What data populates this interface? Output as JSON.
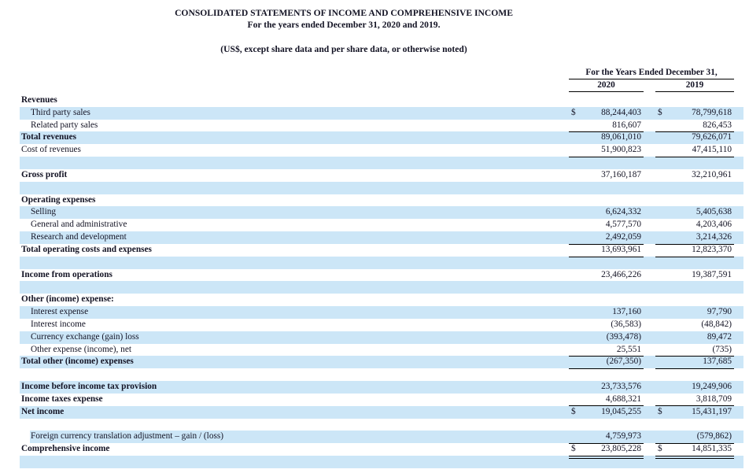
{
  "colors": {
    "stripe": "#cce6f7",
    "text": "#131324",
    "rule": "#000000"
  },
  "header": {
    "title": "CONSOLIDATED STATEMENTS OF INCOME AND COMPREHENSIVE INCOME",
    "period": "For the years ended December 31, 2020 and 2019.",
    "note": "(US$, except share data and per share data, or otherwise noted)"
  },
  "table": {
    "period_header": "For the Years Ended December 31,",
    "columns": [
      "2020",
      "2019"
    ],
    "rows": [
      {
        "label": "Revenues",
        "bold": true,
        "indent": false,
        "dollar1": "",
        "value2020": "",
        "dollar2": "",
        "value2019": "",
        "underline": "none"
      },
      {
        "label": "Third party sales",
        "bold": false,
        "indent": true,
        "dollar1": "$",
        "value2020": "88,244,403",
        "dollar2": "$",
        "value2019": "78,799,618",
        "underline": "none"
      },
      {
        "label": "Related party sales",
        "bold": false,
        "indent": true,
        "dollar1": "",
        "value2020": "816,607",
        "dollar2": "",
        "value2019": "826,453",
        "underline": "single"
      },
      {
        "label": "Total revenues",
        "bold": true,
        "indent": false,
        "dollar1": "",
        "value2020": "89,061,010",
        "dollar2": "",
        "value2019": "79,626,071",
        "underline": "none"
      },
      {
        "label": "Cost of revenues",
        "bold": false,
        "indent": false,
        "dollar1": "",
        "value2020": "51,900,823",
        "dollar2": "",
        "value2019": "47,415,110",
        "underline": "single"
      },
      {
        "label": "",
        "bold": false,
        "indent": false,
        "dollar1": "",
        "value2020": "",
        "dollar2": "",
        "value2019": "",
        "underline": "none"
      },
      {
        "label": "Gross profit",
        "bold": true,
        "indent": false,
        "dollar1": "",
        "value2020": "37,160,187",
        "dollar2": "",
        "value2019": "32,210,961",
        "underline": "none"
      },
      {
        "label": "",
        "bold": false,
        "indent": false,
        "dollar1": "",
        "value2020": "",
        "dollar2": "",
        "value2019": "",
        "underline": "none"
      },
      {
        "label": "Operating expenses",
        "bold": true,
        "indent": false,
        "dollar1": "",
        "value2020": "",
        "dollar2": "",
        "value2019": "",
        "underline": "none"
      },
      {
        "label": "Selling",
        "bold": false,
        "indent": true,
        "dollar1": "",
        "value2020": "6,624,332",
        "dollar2": "",
        "value2019": "5,405,638",
        "underline": "none"
      },
      {
        "label": "General and administrative",
        "bold": false,
        "indent": true,
        "dollar1": "",
        "value2020": "4,577,570",
        "dollar2": "",
        "value2019": "4,203,406",
        "underline": "none"
      },
      {
        "label": "Research and development",
        "bold": false,
        "indent": true,
        "dollar1": "",
        "value2020": "2,492,059",
        "dollar2": "",
        "value2019": "3,214,326",
        "underline": "single"
      },
      {
        "label": "Total operating costs and expenses",
        "bold": true,
        "indent": false,
        "dollar1": "",
        "value2020": "13,693,961",
        "dollar2": "",
        "value2019": "12,823,370",
        "underline": "single"
      },
      {
        "label": "",
        "bold": false,
        "indent": false,
        "dollar1": "",
        "value2020": "",
        "dollar2": "",
        "value2019": "",
        "underline": "none"
      },
      {
        "label": "Income from operations",
        "bold": true,
        "indent": false,
        "dollar1": "",
        "value2020": "23,466,226",
        "dollar2": "",
        "value2019": "19,387,591",
        "underline": "none"
      },
      {
        "label": "",
        "bold": false,
        "indent": false,
        "dollar1": "",
        "value2020": "",
        "dollar2": "",
        "value2019": "",
        "underline": "none"
      },
      {
        "label": "Other (income) expense:",
        "bold": true,
        "indent": false,
        "dollar1": "",
        "value2020": "",
        "dollar2": "",
        "value2019": "",
        "underline": "none"
      },
      {
        "label": "Interest expense",
        "bold": false,
        "indent": true,
        "dollar1": "",
        "value2020": "137,160",
        "dollar2": "",
        "value2019": "97,790",
        "underline": "none"
      },
      {
        "label": "Interest income",
        "bold": false,
        "indent": true,
        "dollar1": "",
        "value2020": "(36,583)",
        "dollar2": "",
        "value2019": "(48,842)",
        "underline": "none"
      },
      {
        "label": "Currency exchange (gain) loss",
        "bold": false,
        "indent": true,
        "dollar1": "",
        "value2020": "(393,478)",
        "dollar2": "",
        "value2019": "89,472",
        "underline": "none"
      },
      {
        "label": "Other expense (income), net",
        "bold": false,
        "indent": true,
        "dollar1": "",
        "value2020": "25,551",
        "dollar2": "",
        "value2019": "(735)",
        "underline": "single"
      },
      {
        "label": "Total other (income) expenses",
        "bold": true,
        "indent": false,
        "dollar1": "",
        "value2020": "(267,350)",
        "dollar2": "",
        "value2019": "137,685",
        "underline": "single"
      },
      {
        "label": "",
        "bold": false,
        "indent": false,
        "dollar1": "",
        "value2020": "",
        "dollar2": "",
        "value2019": "",
        "underline": "none"
      },
      {
        "label": "Income before income tax provision",
        "bold": true,
        "indent": false,
        "dollar1": "",
        "value2020": "23,733,576",
        "dollar2": "",
        "value2019": "19,249,906",
        "underline": "none"
      },
      {
        "label": "Income taxes expense",
        "bold": true,
        "indent": false,
        "dollar1": "",
        "value2020": "4,688,321",
        "dollar2": "",
        "value2019": "3,818,709",
        "underline": "single"
      },
      {
        "label": "Net income",
        "bold": true,
        "indent": false,
        "dollar1": "$",
        "value2020": "19,045,255",
        "dollar2": "$",
        "value2019": "15,431,197",
        "underline": "none"
      },
      {
        "label": "",
        "bold": false,
        "indent": false,
        "dollar1": "",
        "value2020": "",
        "dollar2": "",
        "value2019": "",
        "underline": "none"
      },
      {
        "label": "Foreign currency translation adjustment – gain / (loss)",
        "bold": false,
        "indent": true,
        "stripe_indent": true,
        "dollar1": "",
        "value2020": "4,759,973",
        "dollar2": "",
        "value2019": "(579,862)",
        "underline": "single"
      },
      {
        "label": "Comprehensive income",
        "bold": true,
        "indent": false,
        "dollar1": "$",
        "value2020": "23,805,228",
        "dollar2": "$",
        "value2019": "14,851,335",
        "underline": "double"
      },
      {
        "label": "",
        "bold": false,
        "indent": false,
        "dollar1": "",
        "value2020": "",
        "dollar2": "",
        "value2019": "",
        "underline": "none"
      }
    ]
  }
}
